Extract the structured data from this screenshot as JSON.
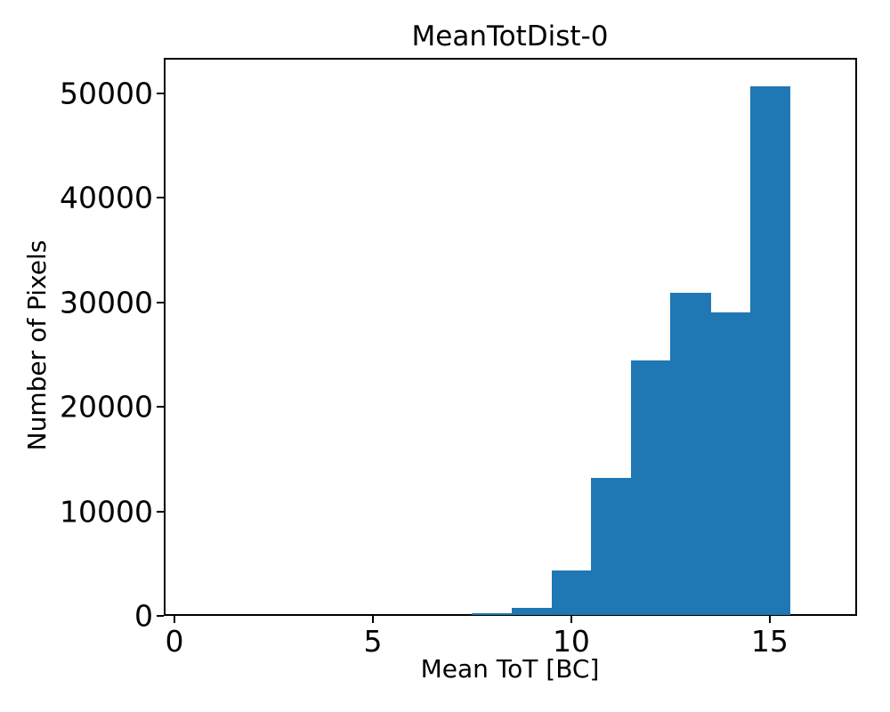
{
  "figure": {
    "title": "MeanTotDist-0"
  },
  "chart_data": {
    "type": "bar",
    "subtype": "histogram",
    "title": "MeanTotDist-0",
    "xlabel": "Mean ToT [BC]",
    "ylabel": "Number of Pixels",
    "bar_color": "#1f77b4",
    "axis_color": "#000000",
    "background_color": "#ffffff",
    "bin_edges": [
      7.5,
      8.5,
      9.5,
      10.5,
      11.5,
      12.5,
      13.5,
      14.5,
      15.5
    ],
    "counts": [
      250,
      770,
      4340,
      13200,
      24450,
      30900,
      29000,
      50700
    ],
    "xticks": [
      0,
      5,
      10,
      15
    ],
    "yticks": [
      0,
      10000,
      20000,
      30000,
      40000,
      50000
    ],
    "xtick_labels": [
      "0",
      "5",
      "10",
      "15"
    ],
    "ytick_labels": [
      "0",
      "10000",
      "20000",
      "30000",
      "40000",
      "50000"
    ],
    "xlim": [
      -0.27,
      17.2
    ],
    "ylim": [
      0,
      53400
    ],
    "grid": false,
    "legend": null
  }
}
